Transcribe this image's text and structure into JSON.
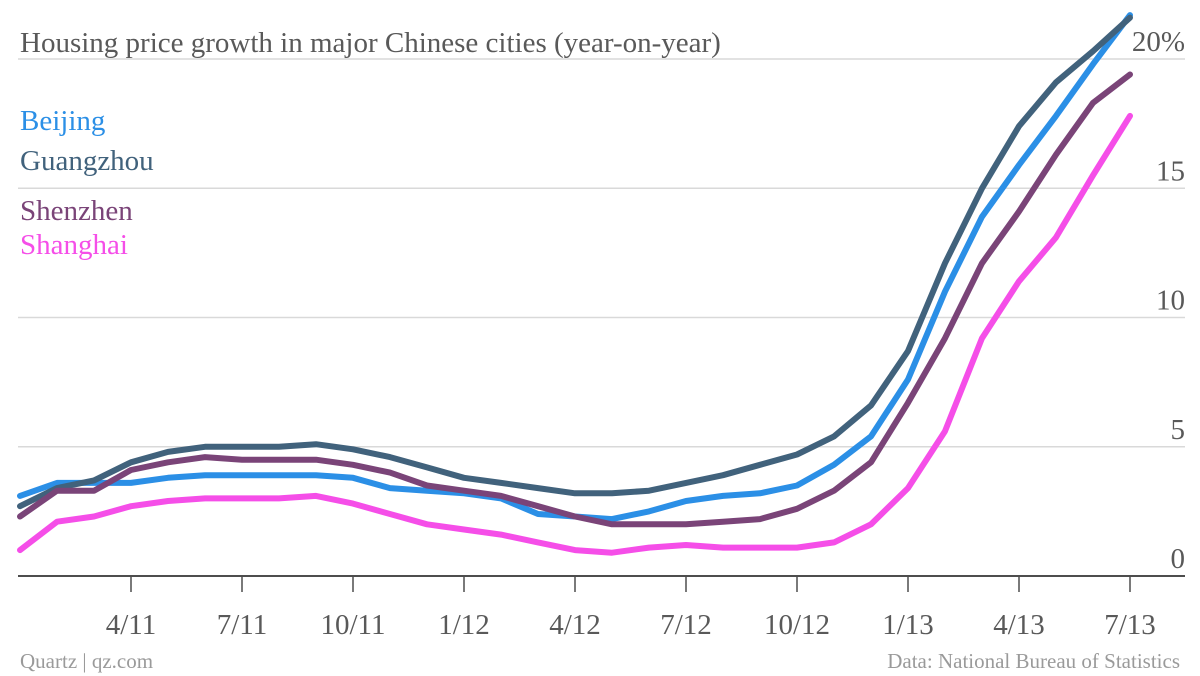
{
  "chart_data": {
    "type": "line",
    "title": "Housing price growth in major Chinese cities (year-on-year)",
    "x": [
      "1/11",
      "2/11",
      "3/11",
      "4/11",
      "5/11",
      "6/11",
      "7/11",
      "8/11",
      "9/11",
      "10/11",
      "11/11",
      "12/11",
      "1/12",
      "2/12",
      "3/12",
      "4/12",
      "5/12",
      "6/12",
      "7/12",
      "8/12",
      "9/12",
      "10/12",
      "11/12",
      "12/12",
      "1/13",
      "2/13",
      "3/13",
      "4/13",
      "5/13",
      "6/13",
      "7/13",
      "8/13"
    ],
    "x_tick_labels": [
      "4/11",
      "7/11",
      "10/11",
      "1/12",
      "4/12",
      "7/12",
      "10/12",
      "1/13",
      "4/13",
      "7/13"
    ],
    "y_tick_labels": [
      "0",
      "5",
      "10",
      "15",
      "20%"
    ],
    "y_ticks": [
      0,
      5,
      10,
      15,
      20
    ],
    "ylim": [
      0,
      21.5
    ],
    "grid": true,
    "legend_position": "top-left",
    "series": [
      {
        "name": "Beijing",
        "color": "#2b8fe6",
        "values": [
          3.1,
          3.6,
          3.6,
          3.6,
          3.8,
          3.9,
          3.9,
          3.9,
          3.9,
          3.8,
          3.4,
          3.3,
          3.2,
          3.0,
          2.4,
          2.3,
          2.2,
          2.5,
          2.9,
          3.1,
          3.2,
          3.5,
          4.3,
          5.4,
          7.6,
          11.0,
          13.9,
          15.9,
          17.8,
          19.8,
          21.7,
          null
        ]
      },
      {
        "name": "Guangzhou",
        "color": "#41627c",
        "values": [
          2.7,
          3.4,
          3.7,
          4.4,
          4.8,
          5.0,
          5.0,
          5.0,
          5.1,
          4.9,
          4.6,
          4.2,
          3.8,
          3.6,
          3.4,
          3.2,
          3.2,
          3.3,
          3.6,
          3.9,
          4.3,
          4.7,
          5.4,
          6.6,
          8.7,
          12.1,
          15.0,
          17.4,
          19.1,
          20.3,
          21.6,
          null
        ]
      },
      {
        "name": "Shenzhen",
        "color": "#7a4478",
        "values": [
          2.3,
          3.3,
          3.3,
          4.1,
          4.4,
          4.6,
          4.5,
          4.5,
          4.5,
          4.3,
          4.0,
          3.5,
          3.3,
          3.1,
          2.7,
          2.3,
          2.0,
          2.0,
          2.0,
          2.1,
          2.2,
          2.6,
          3.3,
          4.4,
          6.7,
          9.2,
          12.1,
          14.1,
          16.3,
          18.3,
          19.4,
          null
        ]
      },
      {
        "name": "Shanghai",
        "color": "#f54ee8",
        "values": [
          1.0,
          2.1,
          2.3,
          2.7,
          2.9,
          3.0,
          3.0,
          3.0,
          3.1,
          2.8,
          2.4,
          2.0,
          1.8,
          1.6,
          1.3,
          1.0,
          0.9,
          1.1,
          1.2,
          1.1,
          1.1,
          1.1,
          1.3,
          2.0,
          3.4,
          5.6,
          9.2,
          11.4,
          13.1,
          15.5,
          17.8,
          null
        ]
      }
    ]
  },
  "header": {
    "title": "Housing price growth in major Chinese cities (year-on-year)"
  },
  "footer": {
    "source_left": "Quartz | qz.com",
    "source_right": "Data: National Bureau of Statistics"
  }
}
